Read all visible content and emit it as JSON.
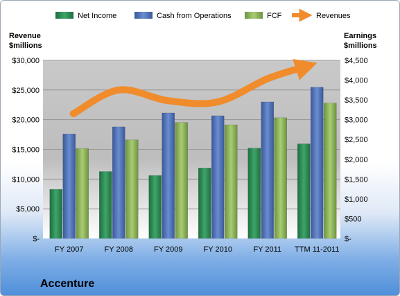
{
  "chart_data": {
    "type": "bar",
    "categories": [
      "FY 2007",
      "FY 2008",
      "FY 2009",
      "FY 2010",
      "FY 2011",
      "TTM 11-2011"
    ],
    "series": [
      {
        "name": "Net Income",
        "axis": "right",
        "color": "#2e8b57",
        "values": [
          1240,
          1690,
          1590,
          1780,
          2280,
          2390
        ]
      },
      {
        "name": "Cash from Operations",
        "axis": "right",
        "color": "#4f72b8",
        "values": [
          2640,
          2820,
          3170,
          3100,
          3450,
          3820
        ]
      },
      {
        "name": "FCF",
        "axis": "right",
        "color": "#8db35a",
        "values": [
          2270,
          2490,
          2930,
          2870,
          3050,
          3420
        ]
      }
    ],
    "line_series": {
      "name": "Revenues",
      "axis": "left",
      "color": "#f08c2c",
      "values": [
        21000,
        25000,
        23200,
        23000,
        26900,
        29000
      ]
    },
    "left_axis": {
      "title": [
        "Revenue",
        "$millions"
      ],
      "ylim": [
        0,
        30000
      ],
      "ticks": [
        "$-",
        "$5,000",
        "$10,000",
        "$15,000",
        "$20,000",
        "$25,000",
        "$30,000"
      ]
    },
    "right_axis": {
      "title": [
        "Earnings",
        "$millions"
      ],
      "ylim": [
        0,
        4500
      ],
      "ticks": [
        "$-",
        "$500",
        "$1,000",
        "$1,500",
        "$2,000",
        "$2,500",
        "$3,000",
        "$3,500",
        "$4,000",
        "$4,500"
      ]
    },
    "legend_position": "top",
    "company": "Accenture"
  }
}
